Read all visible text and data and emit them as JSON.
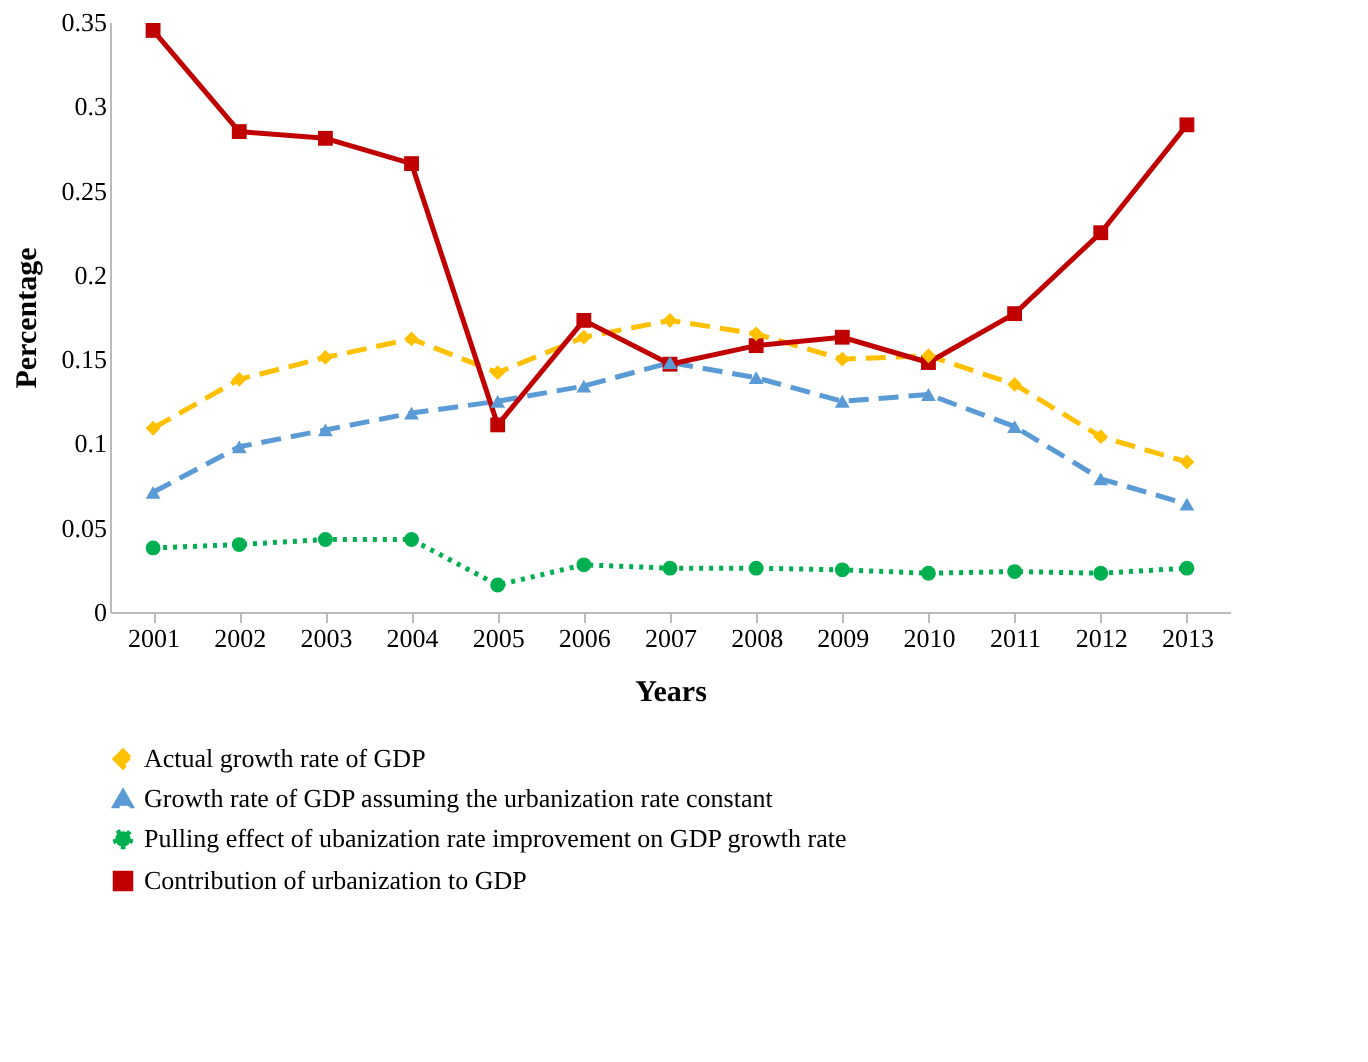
{
  "chart_data": {
    "type": "line",
    "xlabel": "Years",
    "ylabel": "Percentage",
    "categories": [
      "2001",
      "2002",
      "2003",
      "2004",
      "2005",
      "2006",
      "2007",
      "2008",
      "2009",
      "2010",
      "2011",
      "2012",
      "2013"
    ],
    "ylim": [
      0,
      0.35
    ],
    "yticks": [
      0,
      0.05,
      0.1,
      0.15,
      0.2,
      0.25,
      0.3,
      0.35
    ],
    "grid": false,
    "legend": "bottom",
    "series": [
      {
        "name": "Actual growth rate of GDP",
        "color": "#ffc000",
        "marker": "diamond",
        "line_style": "dashed",
        "values": [
          0.109,
          0.138,
          0.151,
          0.162,
          0.142,
          0.163,
          0.173,
          0.165,
          0.15,
          0.152,
          0.135,
          0.104,
          0.089
        ]
      },
      {
        "name": "Growth rate of GDP assuming the urbanization rate constant",
        "color": "#5b9bd5",
        "marker": "triangle",
        "line_style": "dashed",
        "values": [
          0.071,
          0.098,
          0.108,
          0.118,
          0.125,
          0.134,
          0.148,
          0.139,
          0.125,
          0.129,
          0.11,
          0.079,
          0.064
        ]
      },
      {
        "name": "Pulling effect of ubanization rate improvement on GDP growth rate",
        "color": "#00b050",
        "marker": "circle",
        "line_style": "dotted",
        "values": [
          0.038,
          0.04,
          0.043,
          0.043,
          0.016,
          0.028,
          0.026,
          0.026,
          0.025,
          0.023,
          0.024,
          0.023,
          0.026
        ]
      },
      {
        "name": "Contribution of urbanization to GDP",
        "color": "#c00000",
        "marker": "square",
        "line_style": "solid",
        "values": [
          0.345,
          0.285,
          0.281,
          0.266,
          0.111,
          0.173,
          0.147,
          0.158,
          0.163,
          0.148,
          0.177,
          0.225,
          0.289
        ]
      }
    ]
  }
}
